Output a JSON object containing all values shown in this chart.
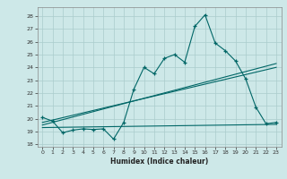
{
  "title": "",
  "xlabel": "Humidex (Indice chaleur)",
  "background_color": "#cde8e8",
  "grid_color": "#aacccc",
  "line_color": "#006666",
  "xlim": [
    -0.5,
    23.5
  ],
  "ylim": [
    17.8,
    28.7
  ],
  "xticks": [
    0,
    1,
    2,
    3,
    4,
    5,
    6,
    7,
    8,
    9,
    10,
    11,
    12,
    13,
    14,
    15,
    16,
    17,
    18,
    19,
    20,
    21,
    22,
    23
  ],
  "yticks": [
    18,
    19,
    20,
    21,
    22,
    23,
    24,
    25,
    26,
    27,
    28
  ],
  "series1_x": [
    0,
    1,
    2,
    3,
    4,
    5,
    6,
    7,
    8,
    9,
    10,
    11,
    12,
    13,
    14,
    15,
    16,
    17,
    18,
    19,
    20,
    21,
    22,
    23
  ],
  "series1_y": [
    20.1,
    19.8,
    18.9,
    19.1,
    19.2,
    19.15,
    19.2,
    18.4,
    19.7,
    22.3,
    24.0,
    23.5,
    24.7,
    25.0,
    24.4,
    27.2,
    28.1,
    25.9,
    25.3,
    24.5,
    23.1,
    20.9,
    19.6,
    19.7
  ],
  "line2_x": [
    0,
    23
  ],
  "line2_y": [
    19.5,
    24.3
  ],
  "line3_x": [
    0,
    23
  ],
  "line3_y": [
    19.3,
    19.55
  ],
  "line4_x": [
    0,
    23
  ],
  "line4_y": [
    19.7,
    24.0
  ]
}
